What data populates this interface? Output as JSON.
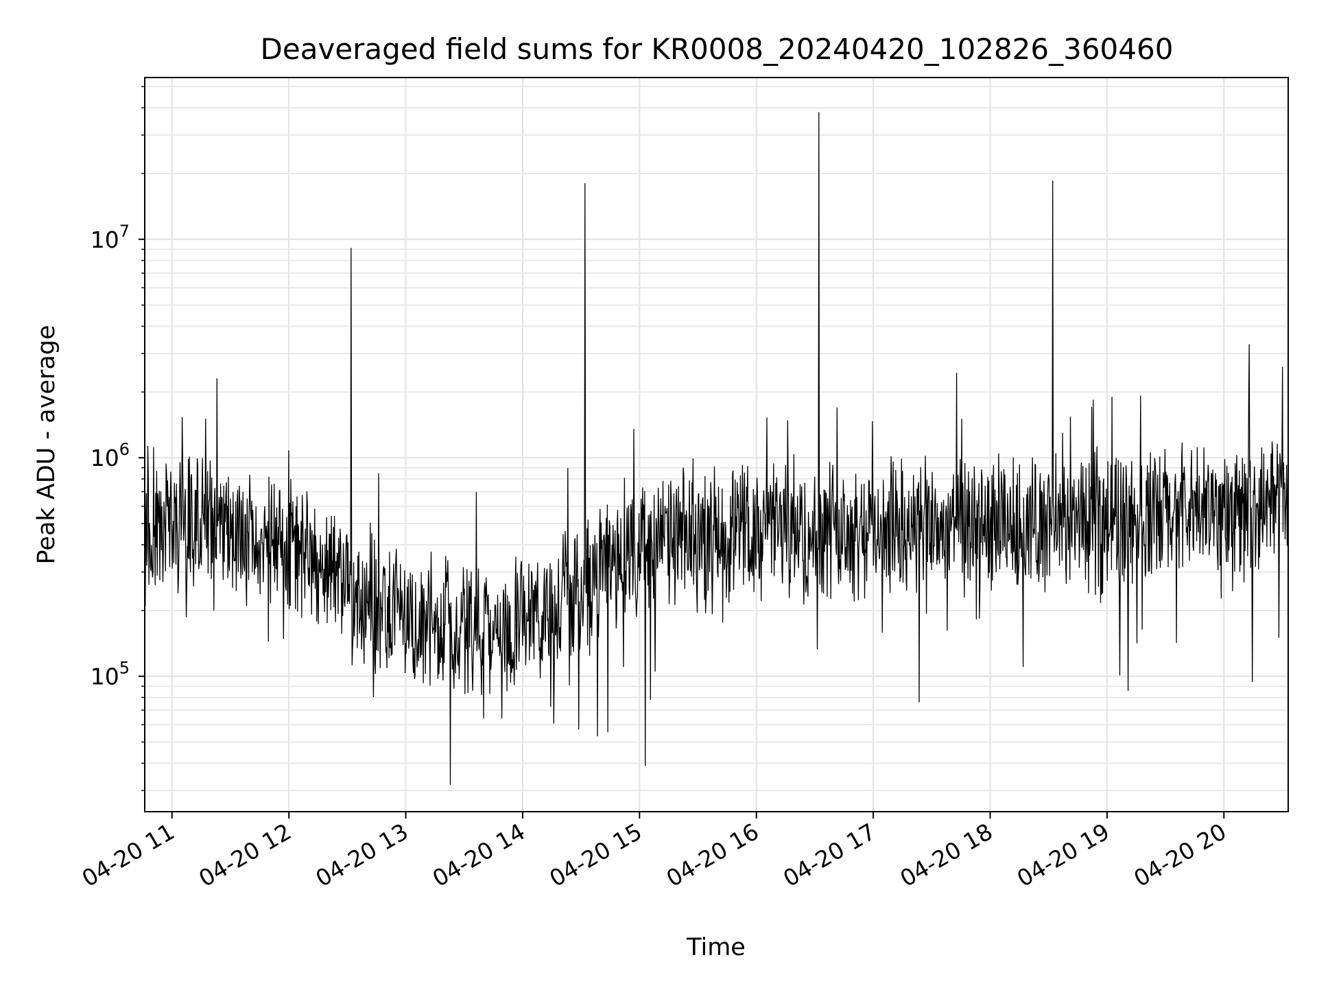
{
  "chart_data": {
    "type": "line",
    "title": "Deaveraged field sums for KR0008_20240420_102826_360460",
    "xlabel": "Time",
    "ylabel": "Peak ADU - average",
    "yscale": "log",
    "ylim": [
      24000,
      55000000
    ],
    "xlim": [
      "2024-04-20 10:46",
      "2024-04-20 20:33"
    ],
    "grid": true,
    "line_color": "#000000",
    "x_ticks": [
      "04-20 11",
      "04-20 12",
      "04-20 13",
      "04-20 14",
      "04-20 15",
      "04-20 16",
      "04-20 17",
      "04-20 18",
      "04-20 19",
      "04-20 20"
    ],
    "y_ticks": [
      {
        "value": 100000,
        "base": "10",
        "exp": "5"
      },
      {
        "value": 1000000,
        "base": "10",
        "exp": "6"
      },
      {
        "value": 10000000,
        "base": "10",
        "exp": "7"
      }
    ],
    "trend": [
      {
        "t": "2024-04-20 10:46",
        "y": 430000
      },
      {
        "t": "2024-04-20 11:10",
        "y": 500000
      },
      {
        "t": "2024-04-20 11:40",
        "y": 420000
      },
      {
        "t": "2024-04-20 12:10",
        "y": 360000
      },
      {
        "t": "2024-04-20 12:40",
        "y": 230000
      },
      {
        "t": "2024-04-20 13:10",
        "y": 180000
      },
      {
        "t": "2024-04-20 13:30",
        "y": 160000
      },
      {
        "t": "2024-04-20 14:00",
        "y": 170000
      },
      {
        "t": "2024-04-20 14:30",
        "y": 250000
      },
      {
        "t": "2024-04-20 15:00",
        "y": 400000
      },
      {
        "t": "2024-04-20 16:00",
        "y": 470000
      },
      {
        "t": "2024-04-20 17:00",
        "y": 480000
      },
      {
        "t": "2024-04-20 18:00",
        "y": 480000
      },
      {
        "t": "2024-04-20 19:00",
        "y": 520000
      },
      {
        "t": "2024-04-20 20:33",
        "y": 620000
      }
    ],
    "spikes": [
      {
        "t": "2024-04-20 11:23",
        "y": 2300000
      },
      {
        "t": "2024-04-20 12:32",
        "y": 9100000
      },
      {
        "t": "2024-04-20 13:23",
        "y": 32000
      },
      {
        "t": "2024-04-20 14:32",
        "y": 18000000
      },
      {
        "t": "2024-04-20 15:03",
        "y": 39000
      },
      {
        "t": "2024-04-20 16:32",
        "y": 38000000
      },
      {
        "t": "2024-04-20 18:32",
        "y": 18500000
      },
      {
        "t": "2024-04-20 20:13",
        "y": 3300000
      },
      {
        "t": "2024-04-20 20:30",
        "y": 2600000
      }
    ]
  }
}
